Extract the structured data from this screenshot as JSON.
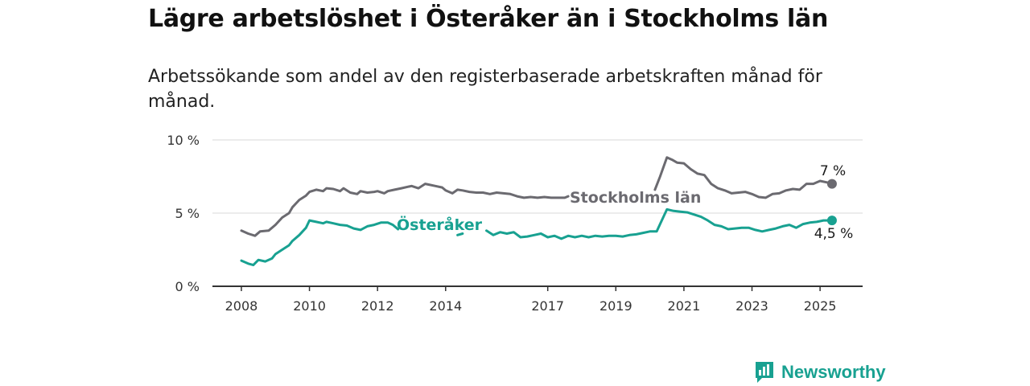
{
  "header": {
    "title": "Lägre arbetslöshet i Österåker än i Stockholms län",
    "subtitle": "Arbetssökande som andel av den registerbaserade arbetskraften månad för månad."
  },
  "brand": {
    "name": "Newsworthy",
    "icon": "bar-chart-icon",
    "color": "#18a191"
  },
  "chart_data": {
    "type": "line",
    "y_ticks": [
      {
        "value": 0,
        "label": "0 %"
      },
      {
        "value": 5,
        "label": "5 %"
      },
      {
        "value": 10,
        "label": "10 %"
      }
    ],
    "x_ticks": [
      {
        "value": 2008,
        "label": "2008"
      },
      {
        "value": 2010,
        "label": "2010"
      },
      {
        "value": 2012,
        "label": "2012"
      },
      {
        "value": 2014,
        "label": "2014"
      },
      {
        "value": 2017,
        "label": "2017"
      },
      {
        "value": 2019,
        "label": "2019"
      },
      {
        "value": 2021,
        "label": "2021"
      },
      {
        "value": 2023,
        "label": "2023"
      },
      {
        "value": 2025,
        "label": "2025"
      }
    ],
    "xlim": [
      2007.15,
      2026.25
    ],
    "ylim": [
      0,
      10
    ],
    "grid": true,
    "series": [
      {
        "name": "Stockholms län",
        "color": "#6b6a70",
        "end_label": "7 %",
        "points": [
          [
            2008.0,
            3.8
          ],
          [
            2008.2,
            3.6
          ],
          [
            2008.4,
            3.45
          ],
          [
            2008.55,
            3.75
          ],
          [
            2008.8,
            3.8
          ],
          [
            2009.0,
            4.2
          ],
          [
            2009.2,
            4.7
          ],
          [
            2009.4,
            5.0
          ],
          [
            2009.5,
            5.4
          ],
          [
            2009.7,
            5.9
          ],
          [
            2009.9,
            6.2
          ],
          [
            2010.0,
            6.45
          ],
          [
            2010.2,
            6.6
          ],
          [
            2010.4,
            6.5
          ],
          [
            2010.5,
            6.7
          ],
          [
            2010.7,
            6.65
          ],
          [
            2010.9,
            6.5
          ],
          [
            2011.0,
            6.7
          ],
          [
            2011.2,
            6.4
          ],
          [
            2011.4,
            6.3
          ],
          [
            2011.5,
            6.5
          ],
          [
            2011.7,
            6.4
          ],
          [
            2011.9,
            6.45
          ],
          [
            2012.0,
            6.5
          ],
          [
            2012.2,
            6.35
          ],
          [
            2012.3,
            6.5
          ],
          [
            2012.5,
            6.6
          ],
          [
            2012.7,
            6.7
          ],
          [
            2012.9,
            6.8
          ],
          [
            2013.0,
            6.85
          ],
          [
            2013.2,
            6.7
          ],
          [
            2013.4,
            7.0
          ],
          [
            2013.5,
            6.95
          ],
          [
            2013.7,
            6.85
          ],
          [
            2013.9,
            6.75
          ],
          [
            2014.0,
            6.55
          ],
          [
            2014.2,
            6.35
          ],
          [
            2014.35,
            6.6
          ],
          [
            2014.5,
            6.55
          ],
          [
            2014.7,
            6.45
          ],
          [
            2014.9,
            6.4
          ],
          [
            2015.1,
            6.4
          ],
          [
            2015.3,
            6.3
          ],
          [
            2015.5,
            6.4
          ],
          [
            2015.7,
            6.35
          ],
          [
            2015.9,
            6.3
          ],
          [
            2016.1,
            6.15
          ],
          [
            2016.3,
            6.05
          ],
          [
            2016.5,
            6.1
          ],
          [
            2016.7,
            6.05
          ],
          [
            2016.9,
            6.1
          ],
          [
            2017.1,
            6.05
          ],
          [
            2017.3,
            6.05
          ],
          [
            2017.5,
            6.05
          ],
          [
            2017.6,
            6.15
          ],
          null,
          [
            2020.15,
            6.6
          ],
          [
            2020.3,
            7.5
          ],
          [
            2020.5,
            8.8
          ],
          [
            2020.65,
            8.65
          ],
          [
            2020.8,
            8.45
          ],
          [
            2021.0,
            8.4
          ],
          [
            2021.2,
            8.0
          ],
          [
            2021.4,
            7.7
          ],
          [
            2021.6,
            7.6
          ],
          [
            2021.8,
            7.0
          ],
          [
            2022.0,
            6.7
          ],
          [
            2022.2,
            6.55
          ],
          [
            2022.4,
            6.35
          ],
          [
            2022.6,
            6.4
          ],
          [
            2022.8,
            6.45
          ],
          [
            2023.0,
            6.3
          ],
          [
            2023.2,
            6.1
          ],
          [
            2023.4,
            6.05
          ],
          [
            2023.6,
            6.3
          ],
          [
            2023.8,
            6.35
          ],
          [
            2024.0,
            6.55
          ],
          [
            2024.2,
            6.65
          ],
          [
            2024.4,
            6.6
          ],
          [
            2024.6,
            7.0
          ],
          [
            2024.8,
            7.0
          ],
          [
            2025.0,
            7.2
          ],
          [
            2025.2,
            7.1
          ],
          [
            2025.35,
            7.0
          ]
        ]
      },
      {
        "name": "Österåker",
        "color": "#18a191",
        "end_label": "4,5 %",
        "points": [
          [
            2008.0,
            1.75
          ],
          [
            2008.2,
            1.55
          ],
          [
            2008.35,
            1.45
          ],
          [
            2008.5,
            1.8
          ],
          [
            2008.7,
            1.7
          ],
          [
            2008.9,
            1.9
          ],
          [
            2009.0,
            2.2
          ],
          [
            2009.2,
            2.5
          ],
          [
            2009.4,
            2.8
          ],
          [
            2009.5,
            3.1
          ],
          [
            2009.7,
            3.5
          ],
          [
            2009.9,
            4.0
          ],
          [
            2010.0,
            4.5
          ],
          [
            2010.2,
            4.4
          ],
          [
            2010.4,
            4.3
          ],
          [
            2010.5,
            4.4
          ],
          [
            2010.7,
            4.3
          ],
          [
            2010.9,
            4.2
          ],
          [
            2011.1,
            4.15
          ],
          [
            2011.3,
            3.95
          ],
          [
            2011.5,
            3.85
          ],
          [
            2011.7,
            4.1
          ],
          [
            2011.9,
            4.2
          ],
          [
            2012.1,
            4.35
          ],
          [
            2012.3,
            4.35
          ],
          [
            2012.45,
            4.2
          ],
          [
            2012.6,
            3.9
          ],
          null,
          [
            2014.35,
            3.5
          ],
          [
            2014.5,
            3.6
          ],
          null,
          [
            2015.2,
            3.8
          ],
          [
            2015.4,
            3.5
          ],
          [
            2015.6,
            3.7
          ],
          [
            2015.8,
            3.6
          ],
          [
            2016.0,
            3.7
          ],
          [
            2016.2,
            3.35
          ],
          [
            2016.4,
            3.4
          ],
          [
            2016.6,
            3.5
          ],
          [
            2016.8,
            3.6
          ],
          [
            2017.0,
            3.35
          ],
          [
            2017.2,
            3.45
          ],
          [
            2017.4,
            3.25
          ],
          [
            2017.6,
            3.45
          ],
          [
            2017.8,
            3.35
          ],
          [
            2018.0,
            3.45
          ],
          [
            2018.2,
            3.35
          ],
          [
            2018.4,
            3.45
          ],
          [
            2018.6,
            3.4
          ],
          [
            2018.8,
            3.45
          ],
          [
            2019.0,
            3.45
          ],
          [
            2019.2,
            3.4
          ],
          [
            2019.4,
            3.5
          ],
          [
            2019.6,
            3.55
          ],
          [
            2019.8,
            3.65
          ],
          [
            2020.0,
            3.75
          ],
          [
            2020.2,
            3.75
          ],
          [
            2020.35,
            4.5
          ],
          [
            2020.5,
            5.25
          ],
          [
            2020.7,
            5.15
          ],
          [
            2020.9,
            5.1
          ],
          [
            2021.1,
            5.05
          ],
          [
            2021.3,
            4.9
          ],
          [
            2021.5,
            4.75
          ],
          [
            2021.7,
            4.5
          ],
          [
            2021.9,
            4.2
          ],
          [
            2022.1,
            4.1
          ],
          [
            2022.3,
            3.9
          ],
          [
            2022.5,
            3.95
          ],
          [
            2022.7,
            4.0
          ],
          [
            2022.9,
            4.0
          ],
          [
            2023.1,
            3.85
          ],
          [
            2023.3,
            3.75
          ],
          [
            2023.5,
            3.85
          ],
          [
            2023.7,
            3.95
          ],
          [
            2023.9,
            4.1
          ],
          [
            2024.1,
            4.2
          ],
          [
            2024.3,
            4.0
          ],
          [
            2024.5,
            4.25
          ],
          [
            2024.7,
            4.35
          ],
          [
            2024.9,
            4.4
          ],
          [
            2025.1,
            4.5
          ],
          [
            2025.35,
            4.5
          ]
        ]
      }
    ]
  }
}
